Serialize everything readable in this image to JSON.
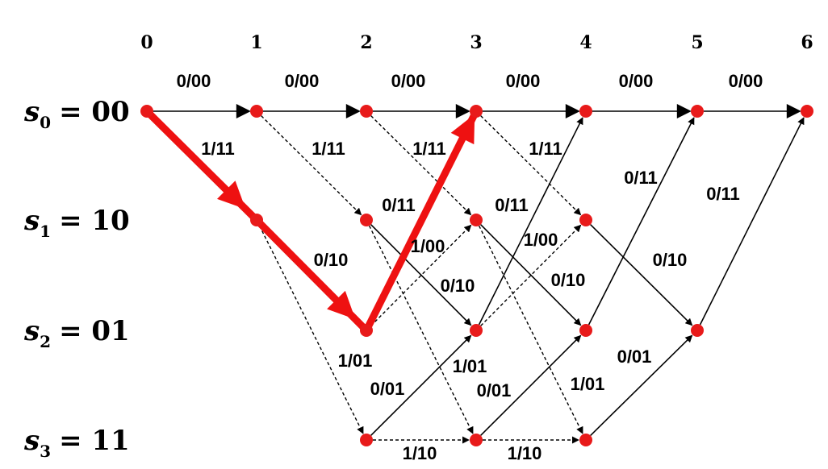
{
  "time_steps": [
    "0",
    "1",
    "2",
    "3",
    "4",
    "5",
    "6"
  ],
  "states": [
    {
      "name": "s",
      "sub": "0",
      "value": "= 00"
    },
    {
      "name": "s",
      "sub": "1",
      "value": "= 10"
    },
    {
      "name": "s",
      "sub": "2",
      "value": "= 01"
    },
    {
      "name": "s",
      "sub": "3",
      "value": "= 11"
    }
  ],
  "edges": [
    {
      "from": [
        0,
        0
      ],
      "to": [
        1,
        0
      ],
      "style": "solid",
      "label": "0/00"
    },
    {
      "from": [
        1,
        0
      ],
      "to": [
        2,
        0
      ],
      "style": "solid",
      "label": "0/00"
    },
    {
      "from": [
        2,
        0
      ],
      "to": [
        3,
        0
      ],
      "style": "solid",
      "label": "0/00"
    },
    {
      "from": [
        3,
        0
      ],
      "to": [
        4,
        0
      ],
      "style": "solid",
      "label": "0/00"
    },
    {
      "from": [
        4,
        0
      ],
      "to": [
        5,
        0
      ],
      "style": "solid",
      "label": "0/00"
    },
    {
      "from": [
        5,
        0
      ],
      "to": [
        6,
        0
      ],
      "style": "solid",
      "label": "0/00"
    },
    {
      "from": [
        0,
        0
      ],
      "to": [
        1,
        1
      ],
      "style": "dashed",
      "label": "1/11"
    },
    {
      "from": [
        1,
        0
      ],
      "to": [
        2,
        1
      ],
      "style": "dashed",
      "label": "1/11"
    },
    {
      "from": [
        2,
        0
      ],
      "to": [
        3,
        1
      ],
      "style": "dashed",
      "label": "1/11"
    },
    {
      "from": [
        3,
        0
      ],
      "to": [
        4,
        1
      ],
      "style": "dashed",
      "label": "1/11"
    },
    {
      "from": [
        1,
        1
      ],
      "to": [
        2,
        2
      ],
      "style": "solid",
      "label": "0/10"
    },
    {
      "from": [
        2,
        1
      ],
      "to": [
        3,
        2
      ],
      "style": "solid",
      "label": "0/10"
    },
    {
      "from": [
        3,
        1
      ],
      "to": [
        4,
        2
      ],
      "style": "solid",
      "label": "0/10"
    },
    {
      "from": [
        4,
        1
      ],
      "to": [
        5,
        2
      ],
      "style": "solid",
      "label": "0/10"
    },
    {
      "from": [
        1,
        1
      ],
      "to": [
        2,
        3
      ],
      "style": "dashed",
      "label": "1/01"
    },
    {
      "from": [
        2,
        1
      ],
      "to": [
        3,
        3
      ],
      "style": "dashed",
      "label": "1/01"
    },
    {
      "from": [
        3,
        1
      ],
      "to": [
        4,
        3
      ],
      "style": "dashed",
      "label": "1/01"
    },
    {
      "from": [
        2,
        2
      ],
      "to": [
        3,
        0
      ],
      "style": "solid",
      "label": "0/11"
    },
    {
      "from": [
        3,
        2
      ],
      "to": [
        4,
        0
      ],
      "style": "solid",
      "label": "0/11"
    },
    {
      "from": [
        4,
        2
      ],
      "to": [
        5,
        0
      ],
      "style": "solid",
      "label": "0/11"
    },
    {
      "from": [
        5,
        2
      ],
      "to": [
        6,
        0
      ],
      "style": "solid",
      "label": "0/11"
    },
    {
      "from": [
        2,
        2
      ],
      "to": [
        3,
        1
      ],
      "style": "dashed",
      "label": "1/00"
    },
    {
      "from": [
        3,
        2
      ],
      "to": [
        4,
        1
      ],
      "style": "dashed",
      "label": "1/00"
    },
    {
      "from": [
        2,
        3
      ],
      "to": [
        3,
        2
      ],
      "style": "solid",
      "label": "0/01"
    },
    {
      "from": [
        3,
        3
      ],
      "to": [
        4,
        2
      ],
      "style": "solid",
      "label": "0/01"
    },
    {
      "from": [
        4,
        3
      ],
      "to": [
        5,
        2
      ],
      "style": "solid",
      "label": "0/01"
    },
    {
      "from": [
        2,
        3
      ],
      "to": [
        3,
        3
      ],
      "style": "dashed",
      "label": "1/10"
    },
    {
      "from": [
        3,
        3
      ],
      "to": [
        4,
        3
      ],
      "style": "dashed",
      "label": "1/10"
    }
  ],
  "highlighted_path": [
    [
      0,
      0
    ],
    [
      1,
      1
    ],
    [
      2,
      2
    ],
    [
      3,
      0
    ]
  ],
  "colors": {
    "node": "#e81a1a",
    "path": "#ee1111",
    "edge": "#000000"
  }
}
